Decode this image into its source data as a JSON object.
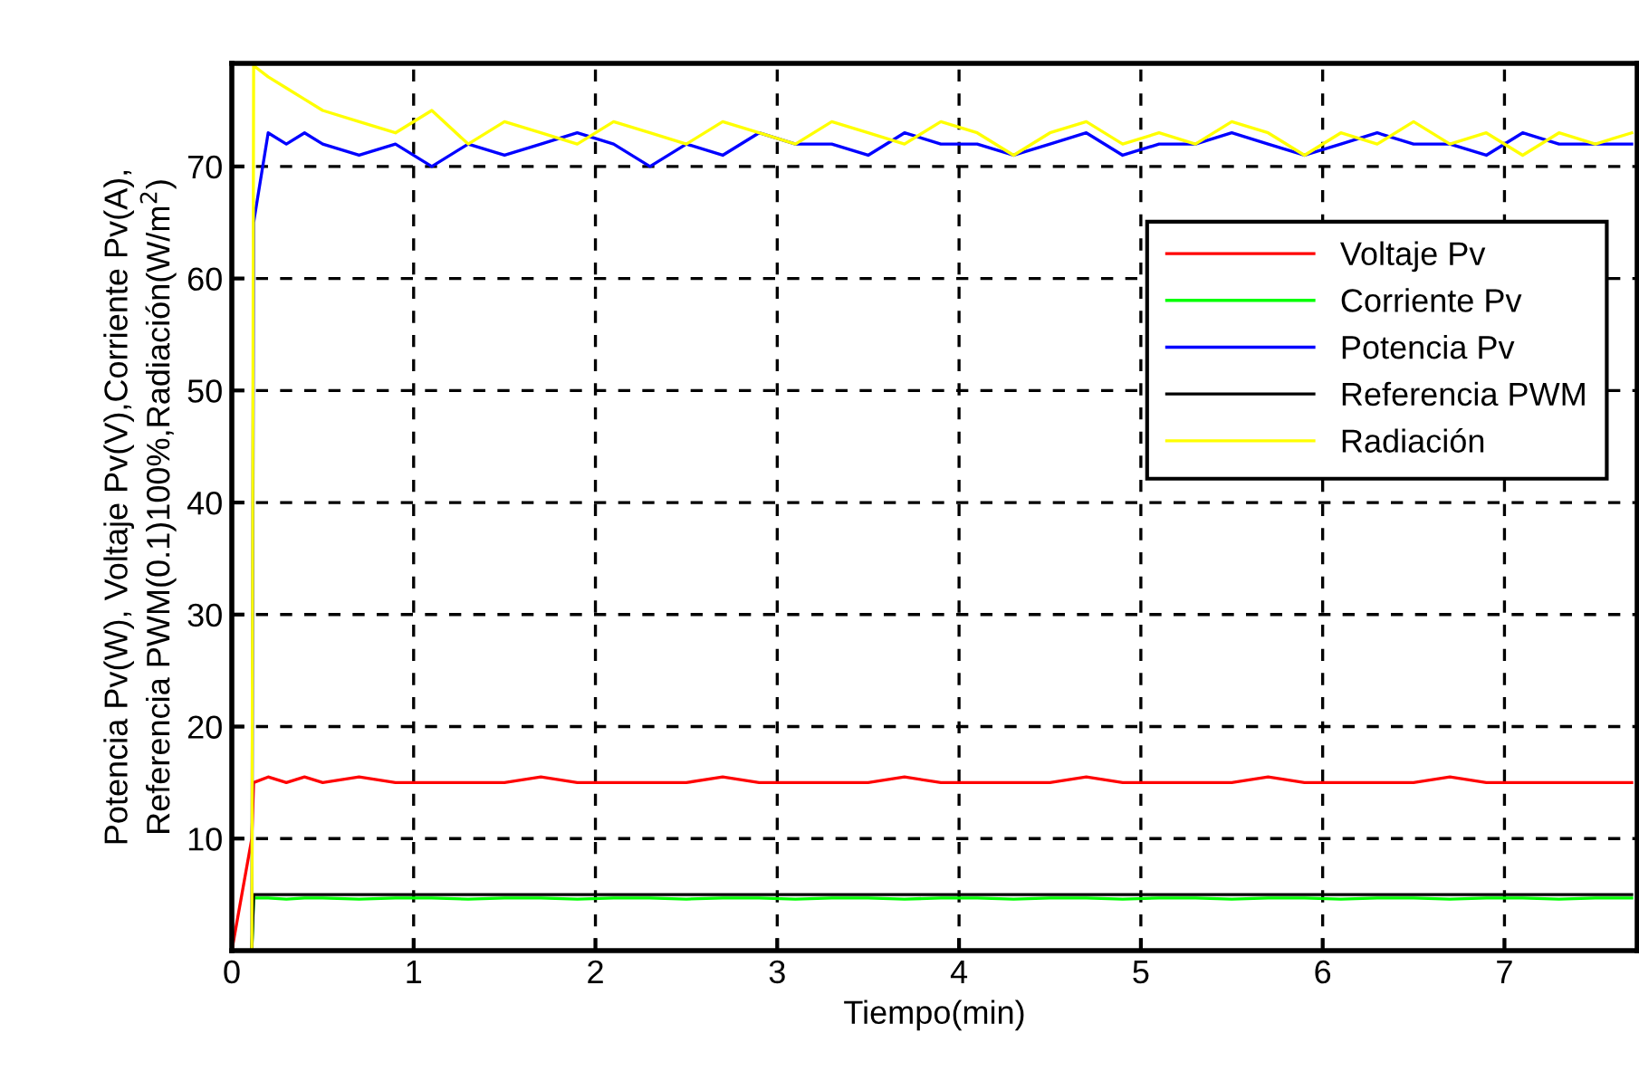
{
  "chart_data": {
    "type": "line",
    "xlabel": "Tiempo(min)",
    "ylabel": "Potencia Pv(W), Voltaje Pv(V),Corriente Pv(A),\nReferencia PWM(0.1)100%,Radiación(W/m$^{2}$)",
    "x": [
      0,
      0.11,
      0.12,
      0.2,
      0.3,
      0.4,
      0.5,
      0.7,
      0.9,
      1.1,
      1.3,
      1.5,
      1.7,
      1.9,
      2.1,
      2.3,
      2.5,
      2.7,
      2.9,
      3.1,
      3.3,
      3.5,
      3.7,
      3.9,
      4.1,
      4.3,
      4.5,
      4.7,
      4.9,
      5.1,
      5.3,
      5.5,
      5.7,
      5.9,
      6.1,
      6.3,
      6.5,
      6.7,
      6.9,
      7.1,
      7.3,
      7.5,
      7.7
    ],
    "series": [
      {
        "name": "Voltaje Pv",
        "color": "#ff0000",
        "values": [
          0,
          10,
          15,
          15.5,
          15,
          15.5,
          15,
          15.5,
          15,
          15,
          15,
          15,
          15.5,
          15,
          15,
          15,
          15,
          15.5,
          15,
          15,
          15,
          15,
          15.5,
          15,
          15,
          15,
          15,
          15.5,
          15,
          15,
          15,
          15,
          15.5,
          15,
          15,
          15,
          15,
          15.5,
          15,
          15,
          15,
          15,
          15
        ]
      },
      {
        "name": "Corriente Pv",
        "color": "#00ff00",
        "values": [
          0,
          0,
          4.7,
          4.7,
          4.6,
          4.7,
          4.7,
          4.6,
          4.7,
          4.7,
          4.6,
          4.7,
          4.7,
          4.6,
          4.7,
          4.7,
          4.6,
          4.7,
          4.7,
          4.6,
          4.7,
          4.7,
          4.6,
          4.7,
          4.7,
          4.6,
          4.7,
          4.7,
          4.6,
          4.7,
          4.7,
          4.6,
          4.7,
          4.7,
          4.6,
          4.7,
          4.7,
          4.6,
          4.7,
          4.7,
          4.6,
          4.7,
          4.7
        ]
      },
      {
        "name": "Potencia Pv",
        "color": "#0000ff",
        "values": [
          0,
          0,
          65,
          73,
          72,
          73,
          72,
          71,
          72,
          70,
          72,
          71,
          72,
          73,
          72,
          70,
          72,
          71,
          73,
          72,
          72,
          71,
          73,
          72,
          72,
          71,
          72,
          73,
          71,
          72,
          72,
          73,
          72,
          71,
          72,
          73,
          72,
          72,
          71,
          73,
          72,
          72,
          72
        ]
      },
      {
        "name": "Referencia PWM",
        "color": "#000000",
        "values": [
          0,
          0,
          5,
          5,
          5,
          5,
          5,
          5,
          5,
          5,
          5,
          5,
          5,
          5,
          5,
          5,
          5,
          5,
          5,
          5,
          5,
          5,
          5,
          5,
          5,
          5,
          5,
          5,
          5,
          5,
          5,
          5,
          5,
          5,
          5,
          5,
          5,
          5,
          5,
          5,
          5,
          5,
          5
        ]
      },
      {
        "name": "Radiación",
        "color": "#ffff00",
        "values": [
          0,
          0,
          79,
          78,
          77,
          76,
          75,
          74,
          73,
          75,
          72,
          74,
          73,
          72,
          74,
          73,
          72,
          74,
          73,
          72,
          74,
          73,
          72,
          74,
          73,
          71,
          73,
          74,
          72,
          73,
          72,
          74,
          73,
          71,
          73,
          72,
          74,
          72,
          73,
          71,
          73,
          72,
          73
        ]
      }
    ],
    "xlim": [
      0,
      7.73
    ],
    "ylim": [
      0,
      79.2
    ],
    "xticks": [
      0,
      1,
      2,
      3,
      4,
      5,
      6,
      7
    ],
    "yticks": [
      10,
      20,
      30,
      40,
      50,
      60,
      70
    ],
    "grid": true,
    "legend": "top right",
    "line_style": "solid"
  }
}
